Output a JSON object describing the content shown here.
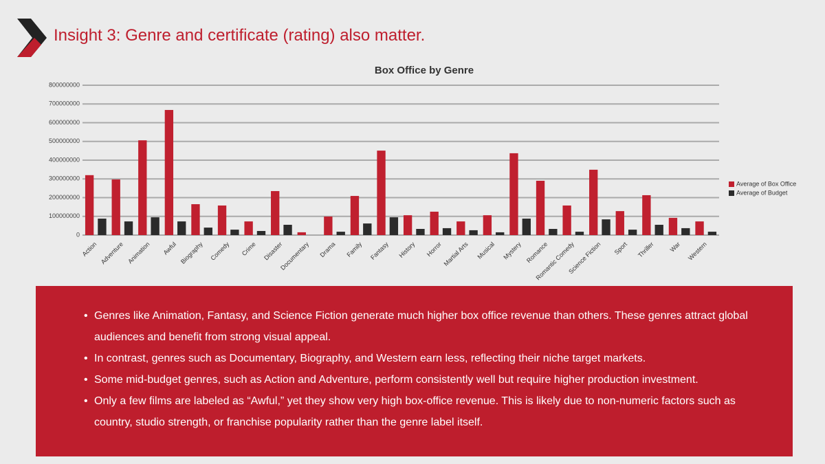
{
  "slide": {
    "title": "Insight 3: Genre and certificate (rating) also matter.",
    "bullets": [
      "Genres like Animation, Fantasy, and Science Fiction generate much higher box office revenue than others. These genres attract global audiences and benefit from strong visual appeal.",
      "In contrast, genres such as Documentary, Biography, and Western earn less, reflecting their niche target markets.",
      "Some mid-budget genres, such as Action and Adventure, perform consistently well but require higher production investment.",
      "Only a few films are labeled as “Awful,” yet they show very high box-office revenue. This is likely due to non-numeric factors such as country, studio strength, or franchise popularity rather than the genre label itself."
    ]
  },
  "chart_data": {
    "type": "bar",
    "title": "Box Office by Genre",
    "categories": [
      "Action",
      "Adventure",
      "Animation",
      "Awful",
      "Biography",
      "Comedy",
      "Crime",
      "Disaster",
      "Documentary",
      "Drama",
      "Family",
      "Fantasy",
      "History",
      "Horror",
      "Martial Arts",
      "Musical",
      "Mystery",
      "Romance",
      "Romantic Comedy",
      "Science Fiction",
      "Sport",
      "Thriller",
      "War",
      "Western"
    ],
    "series": [
      {
        "name": "Average of Box Office",
        "color": "#c0202f",
        "values": [
          320000000,
          297000000,
          506000000,
          668000000,
          165000000,
          158000000,
          73000000,
          235000000,
          15000000,
          99000000,
          209000000,
          451000000,
          106000000,
          125000000,
          73000000,
          106000000,
          437000000,
          290000000,
          158000000,
          349000000,
          128000000,
          213000000,
          92000000,
          73000000
        ]
      },
      {
        "name": "Average of Budget",
        "color": "#2b2b2b",
        "values": [
          88000000,
          73000000,
          95000000,
          73000000,
          40000000,
          29000000,
          22000000,
          55000000,
          0,
          18000000,
          62000000,
          95000000,
          33000000,
          37000000,
          26000000,
          15000000,
          88000000,
          33000000,
          18000000,
          84000000,
          29000000,
          55000000,
          37000000,
          18000000
        ]
      }
    ],
    "ylim": [
      0,
      800000000
    ],
    "yticks": [
      0,
      100000000,
      200000000,
      300000000,
      400000000,
      500000000,
      600000000,
      700000000,
      800000000
    ],
    "grid": true,
    "legend": "right"
  }
}
